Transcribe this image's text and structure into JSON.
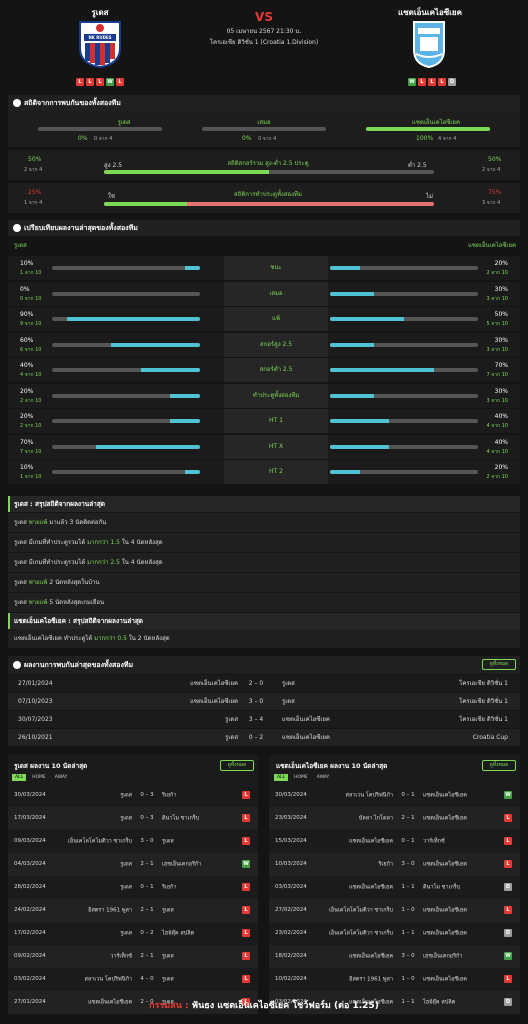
{
  "header": {
    "home_name": "รูเดส",
    "away_name": "แซตเอ็นเคไอซีเยค",
    "vs": "VS",
    "datetime": "05 เมษายน 2567 21:30 น.",
    "league": "โครเอเชีย ดิวิชั่น 1 (Croatia 1.Division)",
    "home_logo_text": "NK RUDES",
    "home_form": [
      "L",
      "L",
      "L",
      "W",
      "L"
    ],
    "away_form": [
      "W",
      "L",
      "L",
      "L",
      "D"
    ],
    "colors": {
      "accent": "#7ed957",
      "loss": "#e53935",
      "win": "#43a047"
    }
  },
  "h2h_stats": {
    "title": "สถิติจากการพบกันของทั้งสองทีม",
    "home_label": "รูเดส",
    "draw_label": "เสมอ",
    "away_label": "แซตเอ็นเคไอซีเยค",
    "home_pct": "0%",
    "home_of": "0 จาก 4",
    "draw_pct": "0%",
    "draw_of": "0 จาก 4",
    "away_pct": "100%",
    "away_of": "4 จาก 4",
    "home_val": 0,
    "draw_val": 0,
    "away_val": 100,
    "ou": {
      "left_pct": "50%",
      "left_of": "2 จาก 4",
      "left_label": "สูง 2.5",
      "center": "สถิติสกอร์รวม สูง-ต่ำ 2.5 ประตู",
      "right_label": "ต่ำ 2.5",
      "right_pct": "50%",
      "right_of": "2 จาก 4",
      "value": 50
    },
    "btts": {
      "left_pct": "25%",
      "left_of": "1 จาก 4",
      "left_label": "ใช่",
      "center": "สถิติการทำประตูทั้งสองทีม",
      "right_label": "ไม่",
      "right_pct": "75%",
      "right_of": "3 จาก 4",
      "value": 25
    }
  },
  "compare": {
    "title": "เปรียบเทียบผลงานล่าสุดของทั้งสองทีม",
    "home_label": "รูเดส",
    "away_label": "แซตเอ็นเคไอซีเยค",
    "rows": [
      {
        "label": "ชนะ",
        "l_pct": "10%",
        "l_of": "1 จาก 10",
        "l": 10,
        "r_pct": "20%",
        "r_of": "2 จาก 10",
        "r": 20
      },
      {
        "label": "เสมอ",
        "l_pct": "0%",
        "l_of": "0 จาก 10",
        "l": 0,
        "r_pct": "30%",
        "r_of": "3 จาก 10",
        "r": 30
      },
      {
        "label": "แพ้",
        "l_pct": "90%",
        "l_of": "9 จาก 10",
        "l": 90,
        "r_pct": "50%",
        "r_of": "5 จาก 10",
        "r": 50
      },
      {
        "label": "สกอร์สูง 2.5",
        "l_pct": "60%",
        "l_of": "6 จาก 10",
        "l": 60,
        "r_pct": "30%",
        "r_of": "3 จาก 10",
        "r": 30
      },
      {
        "label": "สกอร์ต่ำ 2.5",
        "l_pct": "40%",
        "l_of": "4 จาก 10",
        "l": 40,
        "r_pct": "70%",
        "r_of": "7 จาก 10",
        "r": 70
      },
      {
        "label": "ทำประตูทั้งสองทีม",
        "l_pct": "20%",
        "l_of": "2 จาก 10",
        "l": 20,
        "r_pct": "30%",
        "r_of": "3 จาก 10",
        "r": 30
      },
      {
        "label": "HT 1",
        "l_pct": "20%",
        "l_of": "2 จาก 10",
        "l": 20,
        "r_pct": "40%",
        "r_of": "4 จาก 10",
        "r": 40
      },
      {
        "label": "HT X",
        "l_pct": "70%",
        "l_of": "7 จาก 10",
        "l": 70,
        "r_pct": "40%",
        "r_of": "4 จาก 10",
        "r": 40
      },
      {
        "label": "HT 2",
        "l_pct": "10%",
        "l_of": "1 จาก 10",
        "l": 10,
        "r_pct": "20%",
        "r_of": "2 จาก 10",
        "r": 20
      }
    ]
  },
  "home_trends": {
    "title": "รูเดส : สรุปสถิติจากผลงานล่าสุด",
    "items": [
      {
        "a": "รูเดส",
        "b": "พ่ายแพ้",
        "c": "มาแล้ว 3 นัดติดต่อกัน"
      },
      {
        "a": "รูเดส มีเกมที่ทำประตูรวมได้",
        "b": "มากกว่า 1.5",
        "c": "ใน 4 นัดหลังสุด"
      },
      {
        "a": "รูเดส มีเกมที่ทำประตูรวมได้",
        "b": "มากกว่า 2.5",
        "c": "ใน 4 นัดหลังสุด"
      },
      {
        "a": "รูเดส",
        "b": "พ่ายแพ้",
        "c": "2 นัดหลังสุดในบ้าน"
      },
      {
        "a": "รูเดส",
        "b": "พ่ายแพ้",
        "c": "5 นัดหลังสุดเกมเยือน"
      }
    ]
  },
  "away_trends": {
    "title": "แซตเอ็นเคไอซีเยค : สรุปสถิติจากผลงานล่าสุด",
    "items": [
      {
        "a": "แซตเอ็นเคไอซีเยค ทำประตูได้",
        "b": "มากกว่า 0.5",
        "c": "ใน 2 นัดหลังสุด"
      }
    ]
  },
  "h2h_results": {
    "title": "ผลงานการพบกันล่าสุดของทั้งสองทีม",
    "more": "ดูทั้งหมด",
    "rows": [
      {
        "date": "27/01/2024",
        "home": "แซตเอ็นเคไอซีเยค",
        "score": "2 – 0",
        "away": "รูเดส",
        "league": "โครเอเชีย ดิวิชั่น 1"
      },
      {
        "date": "07/10/2023",
        "home": "แซตเอ็นเคไอซีเยค",
        "score": "3 – 0",
        "away": "รูเดส",
        "league": "โครเอเชีย ดิวิชั่น 1"
      },
      {
        "date": "30/07/2023",
        "home": "รูเดส",
        "score": "3 – 4",
        "away": "แซตเอ็นเคไอซีเยค",
        "league": "โครเอเชีย ดิวิชั่น 1"
      },
      {
        "date": "26/10/2021",
        "home": "รูเดส",
        "score": "0 – 2",
        "away": "แซตเอ็นเคไอซีเยค",
        "league": "Croatia Cup"
      }
    ]
  },
  "home_last": {
    "title": "รูเดส ผลงาน 10 นัดล่าสุด",
    "more": "ดูทั้งหมด",
    "tabs": [
      "ALL",
      "HOME",
      "AWAY"
    ],
    "rows": [
      {
        "date": "30/03/2024",
        "home": "รูเดส",
        "score": "0 – 3",
        "away": "ริเยก้า",
        "res": "L"
      },
      {
        "date": "17/03/2024",
        "home": "รูเดส",
        "score": "0 – 3",
        "away": "ดินาโม ซาเกร็บ",
        "res": "L"
      },
      {
        "date": "09/03/2024",
        "home": "เอ็นเคโลโคโมติวา ซาเกร็บ",
        "score": "3 – 0",
        "away": "รูเดส",
        "res": "L"
      },
      {
        "date": "04/03/2024",
        "home": "รูเดส",
        "score": "2 – 1",
        "away": "เฮชเอ็นเคกอริก้า",
        "res": "W"
      },
      {
        "date": "28/02/2024",
        "home": "รูเดส",
        "score": "0 – 1",
        "away": "ริเยก้า",
        "res": "L"
      },
      {
        "date": "24/02/2024",
        "home": "อิสตรา 1961 พูลา",
        "score": "2 – 1",
        "away": "รูเดส",
        "res": "L"
      },
      {
        "date": "17/02/2024",
        "home": "รูเดส",
        "score": "0 – 2",
        "away": "ไฮจ์ดุ๊ค สปลิต",
        "res": "L"
      },
      {
        "date": "09/02/2024",
        "home": "วาร์เท็กซ์",
        "score": "2 – 1",
        "away": "รูเดส",
        "res": "L"
      },
      {
        "date": "03/02/2024",
        "home": "สลาเวน โคปริฟนิก้า",
        "score": "4 – 0",
        "away": "รูเดส",
        "res": "L"
      },
      {
        "date": "27/01/2024",
        "home": "แซตเอ็นเคไอซีเยค",
        "score": "2 – 0",
        "away": "รูเดส",
        "res": "L"
      }
    ]
  },
  "away_last": {
    "title": "แซตเอ็นเคไอซีเยค ผลงาน 10 นัดล่าสุด",
    "more": "ดูทั้งหมด",
    "tabs": [
      "ALL",
      "HOME",
      "AWAY"
    ],
    "rows": [
      {
        "date": "30/03/2024",
        "home": "สลาเวน โคปริฟนิก้า",
        "score": "0 – 1",
        "away": "แซตเอ็นเคไอซีเยค",
        "res": "W"
      },
      {
        "date": "23/03/2024",
        "home": "บัลลา ไกโดลา",
        "score": "2 – 1",
        "away": "แซตเอ็นเคไอซีเยค",
        "res": "L"
      },
      {
        "date": "15/03/2024",
        "home": "แซตเอ็นเคไอซีเยค",
        "score": "0 – 1",
        "away": "วาร์เท็กซ์",
        "res": "L"
      },
      {
        "date": "10/03/2024",
        "home": "ริเยก้า",
        "score": "3 – 0",
        "away": "แซตเอ็นเคไอซีเยค",
        "res": "L"
      },
      {
        "date": "03/03/2024",
        "home": "แซตเอ็นเคไอซีเยค",
        "score": "1 – 1",
        "away": "ดินาโม ซาเกร็บ",
        "res": "D"
      },
      {
        "date": "27/02/2024",
        "home": "เอ็นเคโลโคโมติวา ซาเกร็บ",
        "score": "1 – 0",
        "away": "แซตเอ็นเคไอซีเยค",
        "res": "L"
      },
      {
        "date": "23/02/2024",
        "home": "เอ็นเคโลโคโมติวา ซาเกร็บ",
        "score": "1 – 1",
        "away": "แซตเอ็นเคไอซีเยค",
        "res": "D"
      },
      {
        "date": "18/02/2024",
        "home": "แซตเอ็นเคไอซีเยค",
        "score": "3 – 0",
        "away": "เฮชเอ็นเคกอริก้า",
        "res": "W"
      },
      {
        "date": "10/02/2024",
        "home": "อิสตรา 1961 พูลา",
        "score": "1 – 0",
        "away": "แซตเอ็นเคไอซีเยค",
        "res": "L"
      },
      {
        "date": "03/02/2024",
        "home": "แซตเอ็นเคไอซีเยค",
        "score": "1 – 1",
        "away": "ไฮจ์ดุ๊ค สปลิต",
        "res": "D"
      }
    ]
  },
  "footer": {
    "label": "กรรมสน :",
    "text": "ฟันธง แซตเอ็นเคไอซีเยค โชว์ฟอร์ม (ต่อ 1.25)"
  }
}
